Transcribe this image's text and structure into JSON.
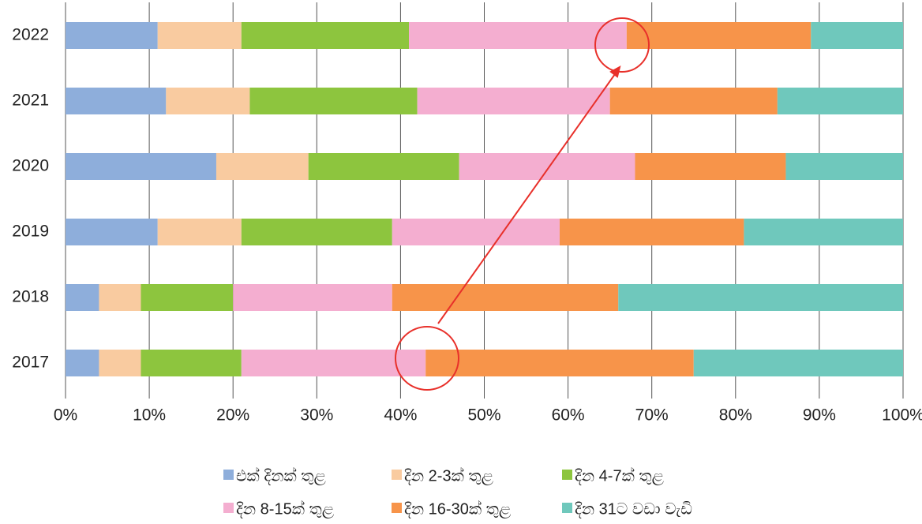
{
  "chart_data": {
    "type": "stacked_bar_horizontal",
    "categories": [
      "2022",
      "2021",
      "2020",
      "2019",
      "2018",
      "2017"
    ],
    "series": [
      {
        "name": "එක් දිනක් තුළ",
        "color": "#8eaedb",
        "values": [
          11,
          12,
          18,
          11,
          4,
          4
        ]
      },
      {
        "name": "දින 2-3ක් තුළ",
        "color": "#f9cba0",
        "values": [
          10,
          10,
          11,
          10,
          5,
          5
        ]
      },
      {
        "name": "දින 4-7ක් තුළ",
        "color": "#8dc53e",
        "values": [
          20,
          20,
          18,
          18,
          11,
          12
        ]
      },
      {
        "name": "දින 8-15ක් තුළ",
        "color": "#f4aed0",
        "values": [
          26,
          23,
          21,
          20,
          19,
          22
        ]
      },
      {
        "name": "දින 16-30ක් තුළ",
        "color": "#f7944a",
        "values": [
          22,
          20,
          18,
          22,
          27,
          32
        ]
      },
      {
        "name": "දින 31ට වඩා වැඩි",
        "color": "#6fc8bc",
        "values": [
          11,
          15,
          14,
          19,
          34,
          25
        ]
      }
    ],
    "xlim": [
      0,
      100
    ],
    "xticks": [
      {
        "value": 0,
        "label": "0%"
      },
      {
        "value": 10,
        "label": "10%"
      },
      {
        "value": 20,
        "label": "20%"
      },
      {
        "value": 30,
        "label": "30%"
      },
      {
        "value": 40,
        "label": "40%"
      },
      {
        "value": 50,
        "label": "50%"
      },
      {
        "value": 60,
        "label": "60%"
      },
      {
        "value": 70,
        "label": "70%"
      },
      {
        "value": 80,
        "label": "80%"
      },
      {
        "value": 90,
        "label": "90%"
      },
      {
        "value": 100,
        "label": "100%"
      }
    ],
    "grid": true,
    "legend": "bottom"
  }
}
